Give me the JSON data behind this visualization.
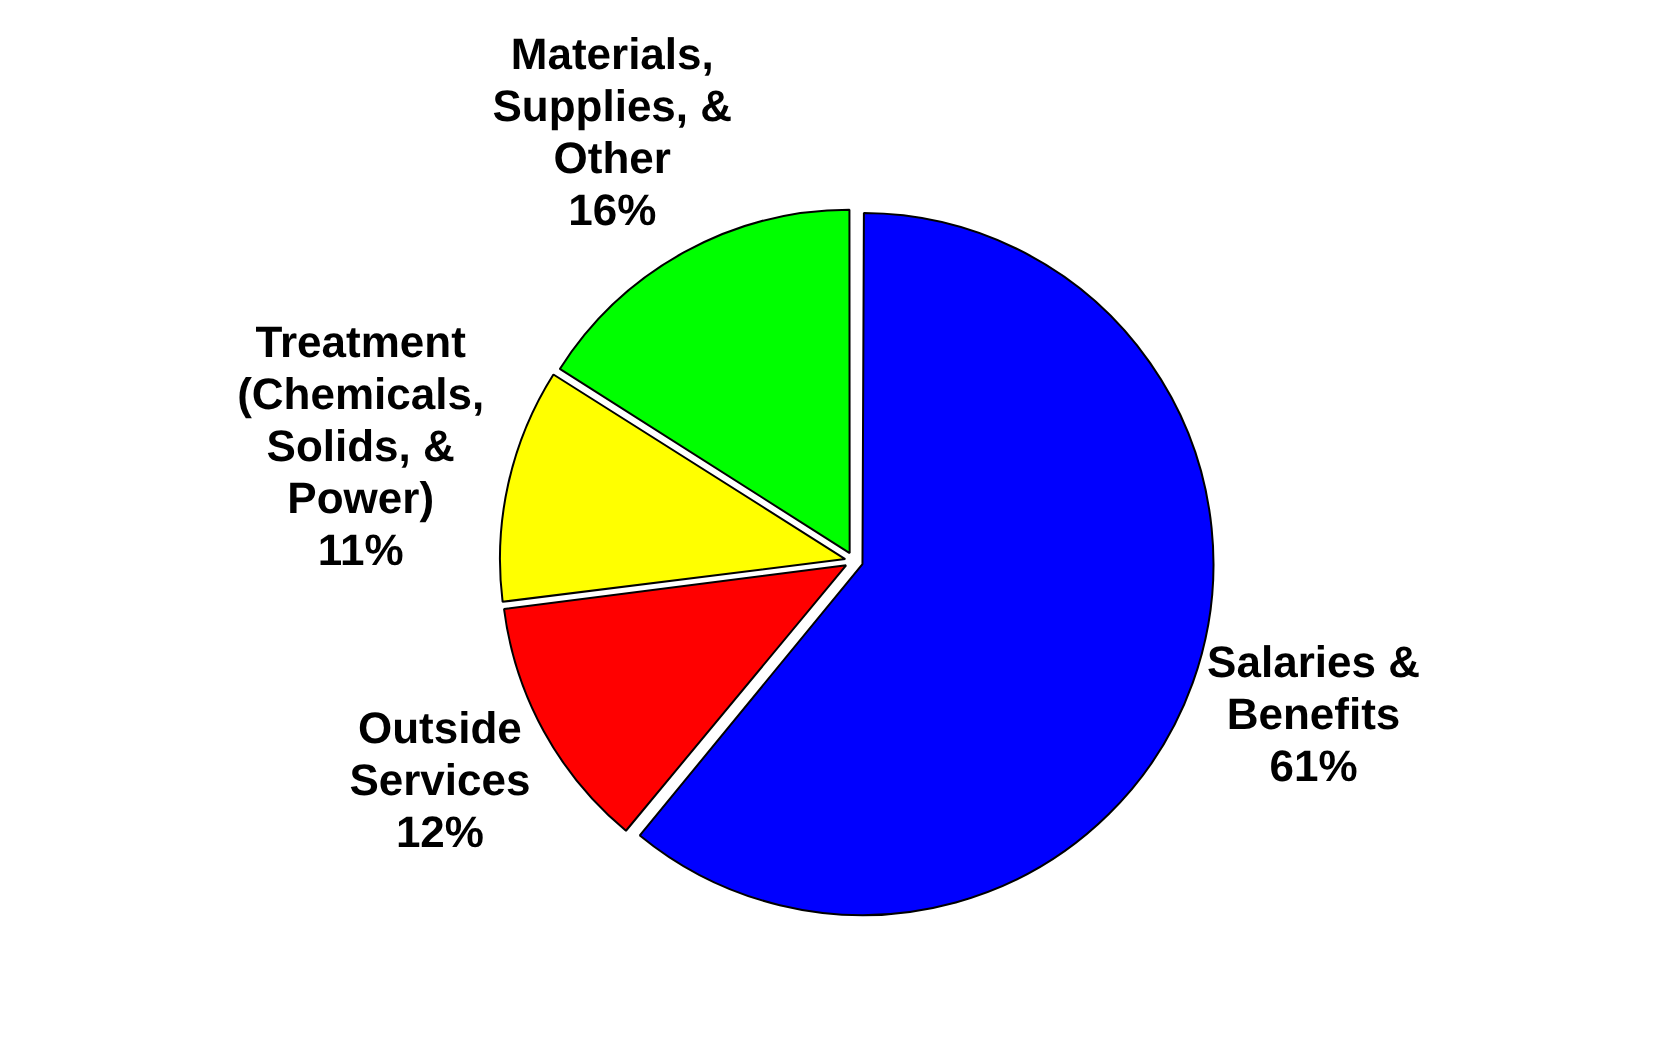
{
  "chart_data": {
    "type": "pie",
    "categories": [
      "Salaries & Benefits",
      "Outside Services",
      "Treatment (Chemicals, Solids, & Power)",
      "Materials, Supplies, & Other"
    ],
    "values": [
      61,
      12,
      11,
      16
    ],
    "value_labels": [
      "61%",
      "12%",
      "11%",
      "16%"
    ],
    "colors": [
      "#0000ff",
      "#ff0000",
      "#ffff00",
      "#00ff00"
    ],
    "legend": false
  }
}
